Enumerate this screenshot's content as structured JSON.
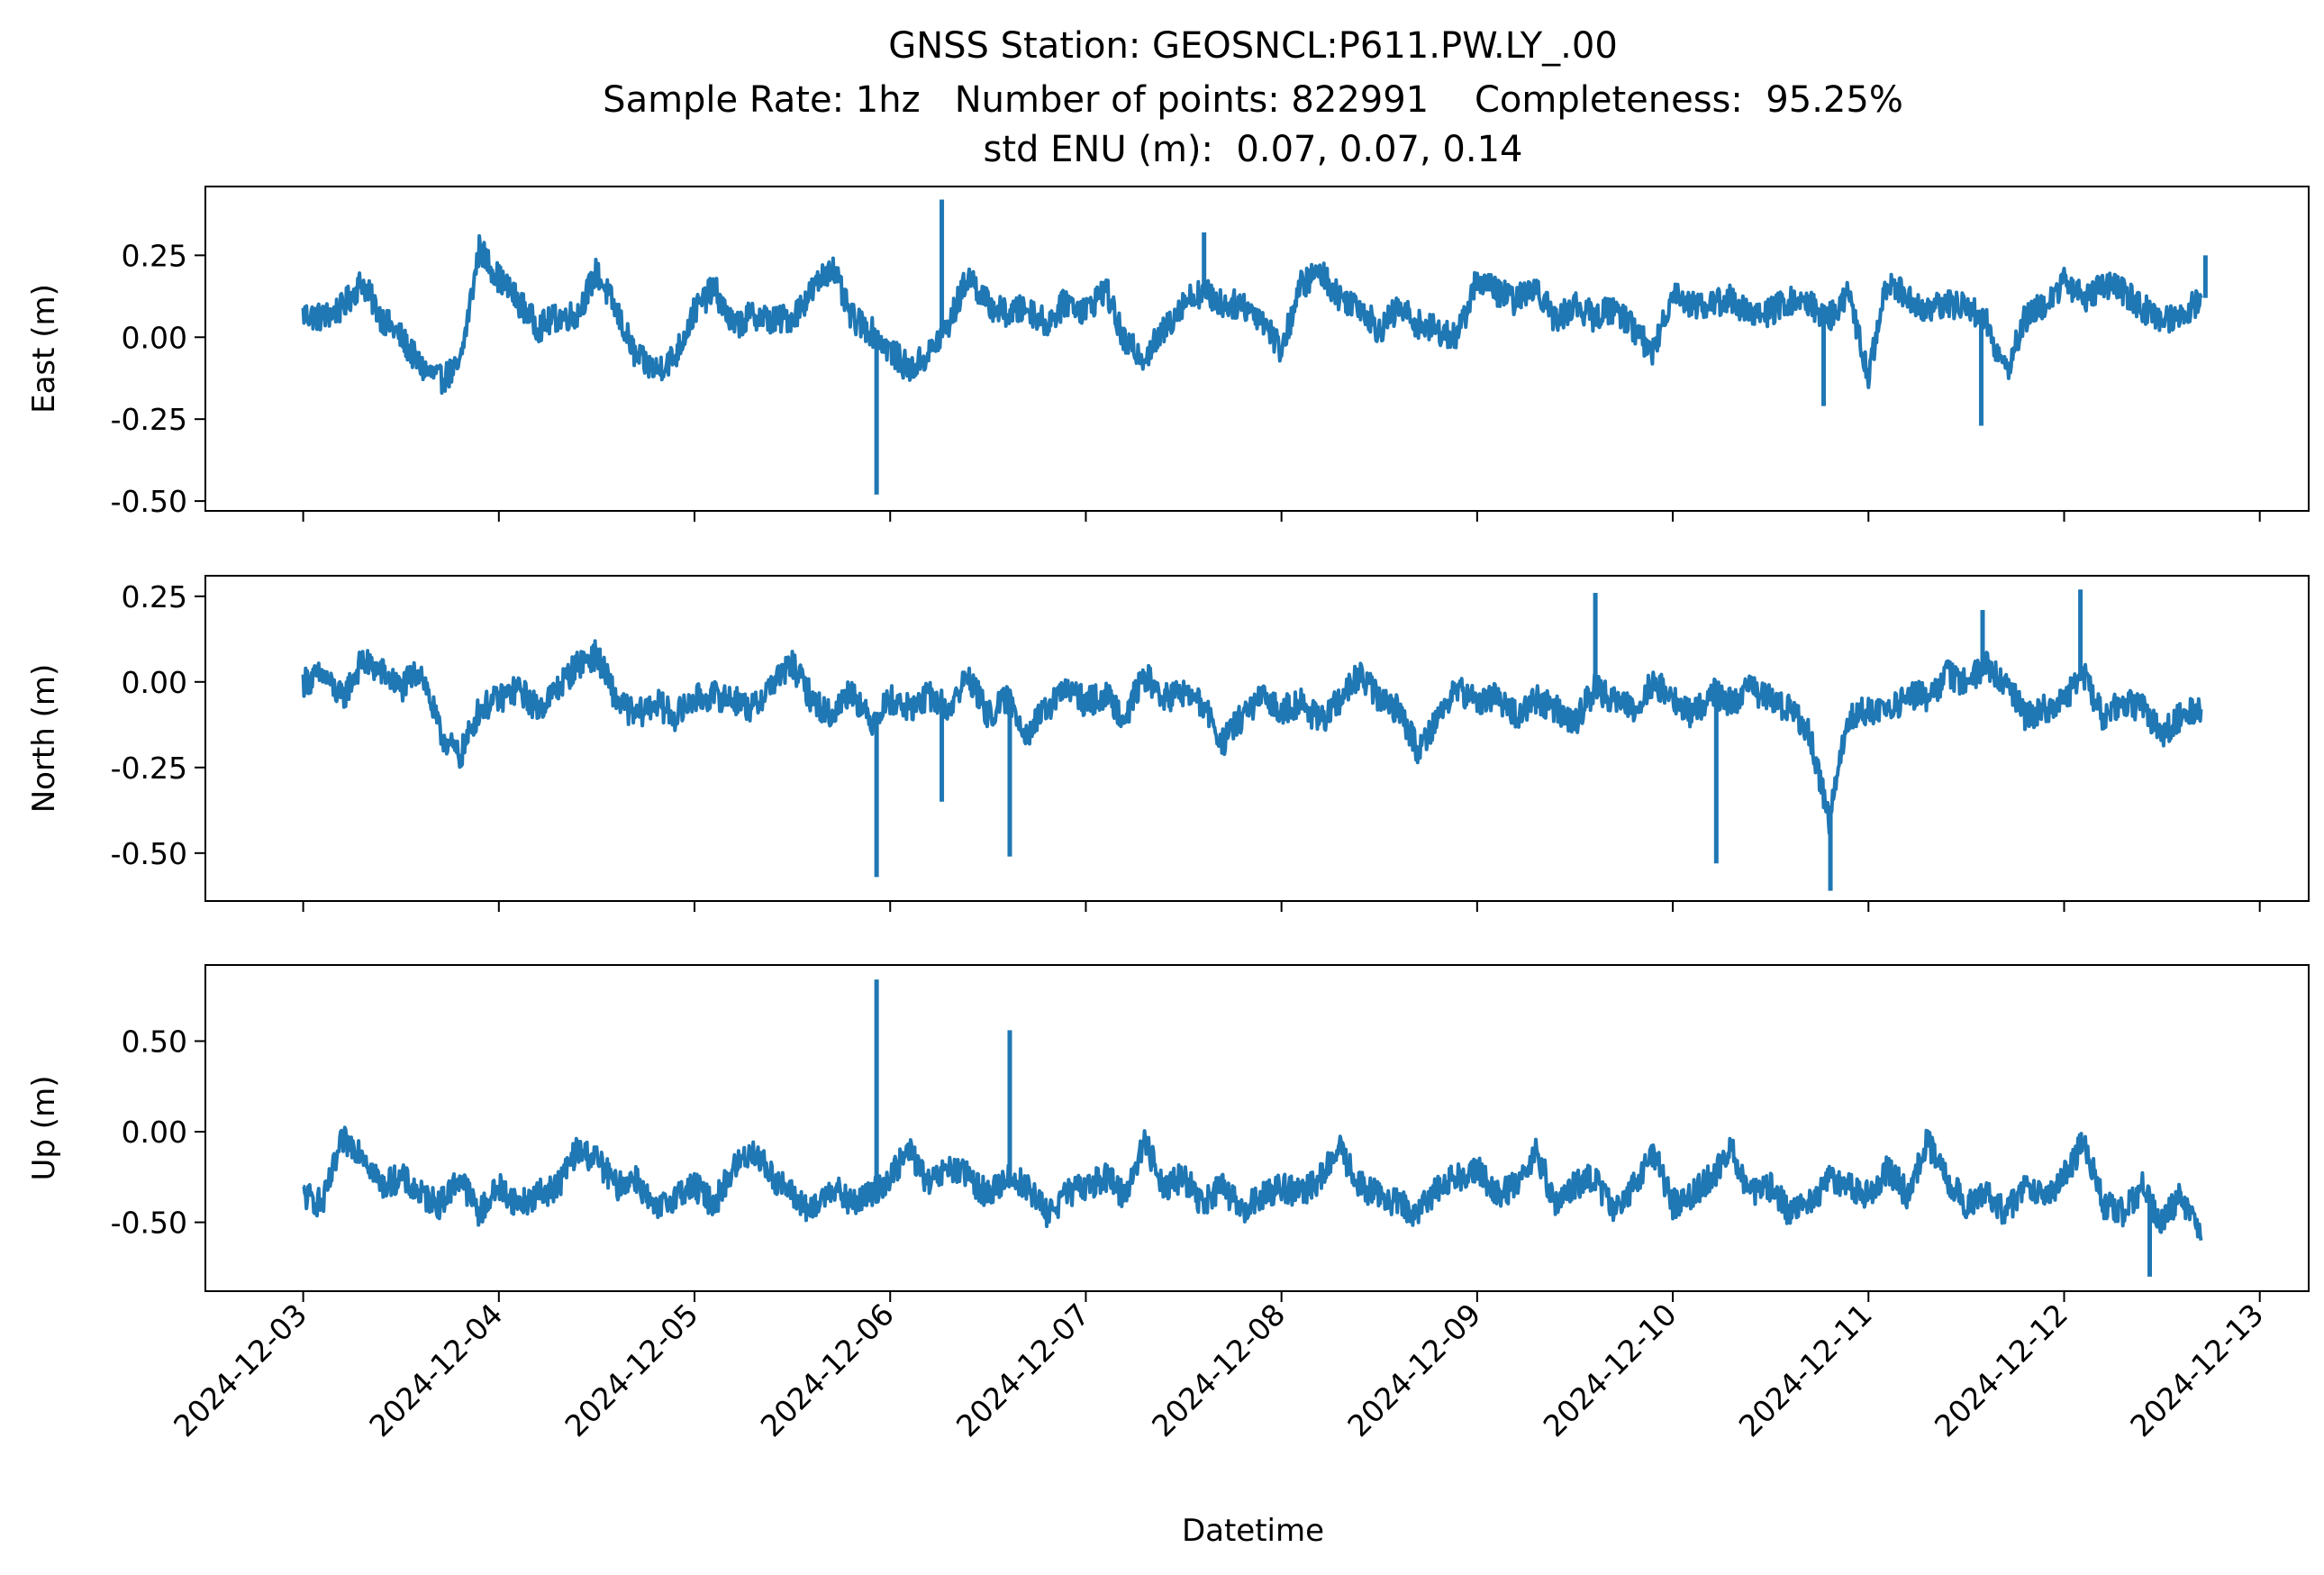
{
  "figure": {
    "title_lines": [
      "GNSS Station: GEOSNCL:P611.PW.LY_.00",
      "Sample Rate: 1hz   Number of points: 822991    Completeness:  95.25%",
      "std ENU (m):  0.07, 0.07, 0.14"
    ],
    "xlabel": "Datetime"
  },
  "chart_data": [
    {
      "type": "line",
      "ylabel": "East (m)",
      "x_range": [
        "2024-12-03",
        "2024-12-12T18:00"
      ],
      "xlim": [
        "2024-12-02T12:00",
        "2024-12-13T06:00"
      ],
      "ylim": [
        -0.53,
        0.46
      ],
      "yticks": [
        0.25,
        0.0,
        -0.25,
        -0.5
      ],
      "ytick_labels": [
        "0.25",
        "0.00",
        "-0.25",
        "-0.50"
      ],
      "xtick_labels": [],
      "color": "#1f77b4",
      "series": [
        {
          "x": [
            "2024-12-03T00:00",
            "2024-12-03T02:24",
            "2024-12-03T04:48",
            "2024-12-03T07:12",
            "2024-12-03T09:36",
            "2024-12-03T12:00",
            "2024-12-03T14:24",
            "2024-12-03T16:48",
            "2024-12-03T19:12",
            "2024-12-03T21:36",
            "2024-12-04T00:00",
            "2024-12-04T02:24",
            "2024-12-04T04:48",
            "2024-12-04T07:12",
            "2024-12-04T09:36",
            "2024-12-04T12:00",
            "2024-12-04T14:24",
            "2024-12-04T16:48",
            "2024-12-04T19:12",
            "2024-12-04T21:36",
            "2024-12-05T00:00",
            "2024-12-05T02:24",
            "2024-12-05T04:48",
            "2024-12-05T07:12",
            "2024-12-05T09:36",
            "2024-12-05T12:00",
            "2024-12-05T14:24",
            "2024-12-05T16:48",
            "2024-12-05T19:12",
            "2024-12-05T21:36",
            "2024-12-06T00:00",
            "2024-12-06T02:24",
            "2024-12-06T04:48",
            "2024-12-06T07:12",
            "2024-12-06T09:36",
            "2024-12-06T12:00",
            "2024-12-06T14:24",
            "2024-12-06T16:48",
            "2024-12-06T19:12",
            "2024-12-06T21:36",
            "2024-12-07T00:00",
            "2024-12-07T02:24",
            "2024-12-07T04:48",
            "2024-12-07T07:12",
            "2024-12-07T09:36",
            "2024-12-07T12:00",
            "2024-12-07T14:24",
            "2024-12-07T16:48",
            "2024-12-07T19:12",
            "2024-12-07T21:36",
            "2024-12-08T00:00",
            "2024-12-08T02:24",
            "2024-12-08T04:48",
            "2024-12-08T07:12",
            "2024-12-08T09:36",
            "2024-12-08T12:00",
            "2024-12-08T14:24",
            "2024-12-08T16:48",
            "2024-12-08T19:12",
            "2024-12-08T21:36",
            "2024-12-09T00:00",
            "2024-12-09T02:24",
            "2024-12-09T04:48",
            "2024-12-09T07:12",
            "2024-12-09T09:36",
            "2024-12-09T12:00",
            "2024-12-09T14:24",
            "2024-12-09T16:48",
            "2024-12-09T19:12",
            "2024-12-09T21:36",
            "2024-12-10T00:00",
            "2024-12-10T02:24",
            "2024-12-10T04:48",
            "2024-12-10T07:12",
            "2024-12-10T09:36",
            "2024-12-10T12:00",
            "2024-12-10T14:24",
            "2024-12-10T16:48",
            "2024-12-10T19:12",
            "2024-12-10T21:36",
            "2024-12-11T00:00",
            "2024-12-11T02:24",
            "2024-12-11T04:48",
            "2024-12-11T07:12",
            "2024-12-11T09:36",
            "2024-12-11T12:00",
            "2024-12-11T14:24",
            "2024-12-11T16:48",
            "2024-12-11T19:12",
            "2024-12-11T21:36",
            "2024-12-12T00:00",
            "2024-12-12T02:24",
            "2024-12-12T04:48",
            "2024-12-12T07:12",
            "2024-12-12T09:36",
            "2024-12-12T12:00",
            "2024-12-12T14:24",
            "2024-12-12T16:48"
          ],
          "y": [
            0.07,
            0.06,
            0.09,
            0.17,
            0.06,
            0.0,
            -0.09,
            -0.13,
            -0.09,
            0.27,
            0.18,
            0.11,
            0.03,
            0.06,
            0.07,
            0.2,
            0.08,
            -0.06,
            -0.1,
            -0.06,
            0.08,
            0.15,
            0.03,
            0.07,
            0.05,
            0.06,
            0.14,
            0.22,
            0.06,
            0.02,
            -0.04,
            -0.1,
            -0.05,
            0.04,
            0.19,
            0.1,
            0.07,
            0.09,
            0.04,
            0.11,
            0.08,
            0.15,
            -0.02,
            -0.06,
            0.02,
            0.11,
            0.14,
            0.1,
            0.1,
            0.06,
            -0.04,
            0.16,
            0.2,
            0.12,
            0.1,
            0.02,
            0.09,
            0.04,
            0.02,
            0.0,
            0.18,
            0.14,
            0.11,
            0.16,
            0.05,
            0.1,
            0.06,
            0.09,
            0.03,
            -0.05,
            0.14,
            0.1,
            0.1,
            0.12,
            0.06,
            0.08,
            0.11,
            0.1,
            0.06,
            0.13,
            -0.12,
            0.18,
            0.12,
            0.08,
            0.1,
            0.1,
            0.05,
            -0.11,
            0.06,
            0.1,
            0.17,
            0.12,
            0.16,
            0.14,
            0.09,
            0.05,
            0.07,
            0.12
          ]
        }
      ],
      "spikes": [
        {
          "x": "2024-12-05T22:20",
          "y": -0.48
        },
        {
          "x": "2024-12-06T06:20",
          "y": 0.42
        },
        {
          "x": "2024-12-07T14:30",
          "y": 0.32
        },
        {
          "x": "2024-12-10T18:30",
          "y": -0.21
        },
        {
          "x": "2024-12-11T13:50",
          "y": -0.27
        },
        {
          "x": "2024-12-12T17:20",
          "y": 0.25
        }
      ]
    },
    {
      "type": "line",
      "ylabel": "North (m)",
      "x_range": [
        "2024-12-03",
        "2024-12-12T18:00"
      ],
      "xlim": [
        "2024-12-02T12:00",
        "2024-12-13T06:00"
      ],
      "ylim": [
        -0.64,
        0.31
      ],
      "yticks": [
        0.25,
        0.0,
        -0.25,
        -0.5
      ],
      "ytick_labels": [
        "0.25",
        "0.00",
        "-0.25",
        "-0.50"
      ],
      "xtick_labels": [],
      "color": "#1f77b4",
      "series": [
        {
          "x": [
            "2024-12-03T00:00",
            "2024-12-03T02:24",
            "2024-12-03T04:48",
            "2024-12-03T07:12",
            "2024-12-03T09:36",
            "2024-12-03T12:00",
            "2024-12-03T14:24",
            "2024-12-03T16:48",
            "2024-12-03T19:12",
            "2024-12-03T21:36",
            "2024-12-04T00:00",
            "2024-12-04T02:24",
            "2024-12-04T04:48",
            "2024-12-04T07:12",
            "2024-12-04T09:36",
            "2024-12-04T12:00",
            "2024-12-04T14:24",
            "2024-12-04T16:48",
            "2024-12-04T19:12",
            "2024-12-04T21:36",
            "2024-12-05T00:00",
            "2024-12-05T02:24",
            "2024-12-05T04:48",
            "2024-12-05T07:12",
            "2024-12-05T09:36",
            "2024-12-05T12:00",
            "2024-12-05T14:24",
            "2024-12-05T16:48",
            "2024-12-05T19:12",
            "2024-12-05T21:36",
            "2024-12-06T00:00",
            "2024-12-06T02:24",
            "2024-12-06T04:48",
            "2024-12-06T07:12",
            "2024-12-06T09:36",
            "2024-12-06T12:00",
            "2024-12-06T14:24",
            "2024-12-06T16:48",
            "2024-12-06T19:12",
            "2024-12-06T21:36",
            "2024-12-07T00:00",
            "2024-12-07T02:24",
            "2024-12-07T04:48",
            "2024-12-07T07:12",
            "2024-12-07T09:36",
            "2024-12-07T12:00",
            "2024-12-07T14:24",
            "2024-12-07T16:48",
            "2024-12-07T19:12",
            "2024-12-07T21:36",
            "2024-12-08T00:00",
            "2024-12-08T02:24",
            "2024-12-08T04:48",
            "2024-12-08T07:12",
            "2024-12-08T09:36",
            "2024-12-08T12:00",
            "2024-12-08T14:24",
            "2024-12-08T16:48",
            "2024-12-08T19:12",
            "2024-12-08T21:36",
            "2024-12-09T00:00",
            "2024-12-09T02:24",
            "2024-12-09T04:48",
            "2024-12-09T07:12",
            "2024-12-09T09:36",
            "2024-12-09T12:00",
            "2024-12-09T14:24",
            "2024-12-09T16:48",
            "2024-12-09T19:12",
            "2024-12-09T21:36",
            "2024-12-10T00:00",
            "2024-12-10T02:24",
            "2024-12-10T04:48",
            "2024-12-10T07:12",
            "2024-12-10T09:36",
            "2024-12-10T12:00",
            "2024-12-10T14:24",
            "2024-12-10T16:48",
            "2024-12-10T19:12",
            "2024-12-10T21:36",
            "2024-12-11T00:00",
            "2024-12-11T02:24",
            "2024-12-11T04:48",
            "2024-12-11T07:12",
            "2024-12-11T09:36",
            "2024-12-11T12:00",
            "2024-12-11T14:24",
            "2024-12-11T16:48",
            "2024-12-11T19:12",
            "2024-12-11T21:36",
            "2024-12-12T00:00",
            "2024-12-12T02:24",
            "2024-12-12T04:48",
            "2024-12-12T07:12",
            "2024-12-12T09:36",
            "2024-12-12T12:00",
            "2024-12-12T14:24",
            "2024-12-12T16:48"
          ],
          "y": [
            0.0,
            0.02,
            -0.05,
            0.06,
            0.03,
            -0.02,
            0.04,
            -0.15,
            -0.22,
            -0.08,
            -0.05,
            -0.02,
            -0.08,
            -0.02,
            0.05,
            0.08,
            -0.05,
            -0.1,
            -0.06,
            -0.1,
            -0.05,
            -0.04,
            -0.05,
            -0.08,
            0.0,
            0.05,
            -0.05,
            -0.1,
            -0.02,
            -0.12,
            -0.05,
            -0.08,
            -0.04,
            -0.08,
            0.02,
            -0.1,
            -0.05,
            -0.15,
            -0.08,
            -0.02,
            -0.06,
            -0.04,
            -0.1,
            0.02,
            -0.05,
            -0.03,
            -0.07,
            -0.18,
            -0.1,
            -0.05,
            -0.08,
            -0.06,
            -0.12,
            -0.05,
            0.02,
            -0.05,
            -0.08,
            -0.2,
            -0.1,
            -0.02,
            -0.06,
            -0.04,
            -0.1,
            -0.05,
            -0.08,
            -0.12,
            -0.02,
            -0.05,
            -0.08,
            0.0,
            -0.05,
            -0.1,
            -0.03,
            -0.06,
            -0.02,
            -0.05,
            -0.08,
            -0.15,
            -0.4,
            -0.1,
            -0.08,
            -0.1,
            -0.03,
            -0.05,
            0.02,
            0.0,
            0.05,
            0.0,
            -0.1,
            -0.08,
            -0.05,
            0.02,
            -0.1,
            -0.05,
            -0.08,
            -0.15,
            -0.1,
            -0.08
          ]
        }
      ],
      "spikes": [
        {
          "x": "2024-12-05T22:20",
          "y": -0.57
        },
        {
          "x": "2024-12-06T06:20",
          "y": -0.35
        },
        {
          "x": "2024-12-06T14:40",
          "y": -0.51
        },
        {
          "x": "2024-12-09T14:30",
          "y": 0.26
        },
        {
          "x": "2024-12-10T05:20",
          "y": -0.53
        },
        {
          "x": "2024-12-10T19:20",
          "y": -0.61
        },
        {
          "x": "2024-12-11T14:00",
          "y": 0.21
        },
        {
          "x": "2024-12-12T02:00",
          "y": 0.27
        }
      ]
    },
    {
      "type": "line",
      "ylabel": "Up (m)",
      "x_range": [
        "2024-12-03",
        "2024-12-12T18:00"
      ],
      "xlim": [
        "2024-12-02T12:00",
        "2024-12-13T06:00"
      ],
      "ylim": [
        -0.88,
        0.92
      ],
      "yticks": [
        0.5,
        0.0,
        -0.5
      ],
      "ytick_labels": [
        "0.50",
        "0.00",
        "-0.50"
      ],
      "xtick_labels": [
        "2024-12-03",
        "2024-12-04",
        "2024-12-05",
        "2024-12-06",
        "2024-12-07",
        "2024-12-08",
        "2024-12-09",
        "2024-12-10",
        "2024-12-11",
        "2024-12-12",
        "2024-12-13"
      ],
      "color": "#1f77b4",
      "series": [
        {
          "x": [
            "2024-12-03T00:00",
            "2024-12-03T02:24",
            "2024-12-03T04:48",
            "2024-12-03T07:12",
            "2024-12-03T09:36",
            "2024-12-03T12:00",
            "2024-12-03T14:24",
            "2024-12-03T16:48",
            "2024-12-03T19:12",
            "2024-12-03T21:36",
            "2024-12-04T00:00",
            "2024-12-04T02:24",
            "2024-12-04T04:48",
            "2024-12-04T07:12",
            "2024-12-04T09:36",
            "2024-12-04T12:00",
            "2024-12-04T14:24",
            "2024-12-04T16:48",
            "2024-12-04T19:12",
            "2024-12-04T21:36",
            "2024-12-05T00:00",
            "2024-12-05T02:24",
            "2024-12-05T04:48",
            "2024-12-05T07:12",
            "2024-12-05T09:36",
            "2024-12-05T12:00",
            "2024-12-05T14:24",
            "2024-12-05T16:48",
            "2024-12-05T19:12",
            "2024-12-05T21:36",
            "2024-12-06T00:00",
            "2024-12-06T02:24",
            "2024-12-06T04:48",
            "2024-12-06T07:12",
            "2024-12-06T09:36",
            "2024-12-06T12:00",
            "2024-12-06T14:24",
            "2024-12-06T16:48",
            "2024-12-06T19:12",
            "2024-12-06T21:36",
            "2024-12-07T00:00",
            "2024-12-07T02:24",
            "2024-12-07T04:48",
            "2024-12-07T07:12",
            "2024-12-07T09:36",
            "2024-12-07T12:00",
            "2024-12-07T14:24",
            "2024-12-07T16:48",
            "2024-12-07T19:12",
            "2024-12-07T21:36",
            "2024-12-08T00:00",
            "2024-12-08T02:24",
            "2024-12-08T04:48",
            "2024-12-08T07:12",
            "2024-12-08T09:36",
            "2024-12-08T12:00",
            "2024-12-08T14:24",
            "2024-12-08T16:48",
            "2024-12-08T19:12",
            "2024-12-08T21:36",
            "2024-12-09T00:00",
            "2024-12-09T02:24",
            "2024-12-09T04:48",
            "2024-12-09T07:12",
            "2024-12-09T09:36",
            "2024-12-09T12:00",
            "2024-12-09T14:24",
            "2024-12-09T16:48",
            "2024-12-09T19:12",
            "2024-12-09T21:36",
            "2024-12-10T00:00",
            "2024-12-10T02:24",
            "2024-12-10T04:48",
            "2024-12-10T07:12",
            "2024-12-10T09:36",
            "2024-12-10T12:00",
            "2024-12-10T14:24",
            "2024-12-10T16:48",
            "2024-12-10T19:12",
            "2024-12-10T21:36",
            "2024-12-11T00:00",
            "2024-12-11T02:24",
            "2024-12-11T04:48",
            "2024-12-11T07:12",
            "2024-12-11T09:36",
            "2024-12-11T12:00",
            "2024-12-11T14:24",
            "2024-12-11T16:48",
            "2024-12-11T19:12",
            "2024-12-11T21:36",
            "2024-12-12T00:00",
            "2024-12-12T02:24",
            "2024-12-12T04:48",
            "2024-12-12T07:12",
            "2024-12-12T09:36",
            "2024-12-12T12:00",
            "2024-12-12T14:24",
            "2024-12-12T16:48"
          ],
          "y": [
            -0.35,
            -0.4,
            -0.05,
            -0.1,
            -0.3,
            -0.25,
            -0.35,
            -0.4,
            -0.25,
            -0.45,
            -0.3,
            -0.4,
            -0.35,
            -0.3,
            -0.1,
            -0.15,
            -0.3,
            -0.25,
            -0.45,
            -0.35,
            -0.3,
            -0.4,
            -0.2,
            -0.1,
            -0.25,
            -0.35,
            -0.45,
            -0.3,
            -0.4,
            -0.35,
            -0.25,
            -0.1,
            -0.3,
            -0.2,
            -0.25,
            -0.35,
            -0.25,
            -0.3,
            -0.45,
            -0.35,
            -0.3,
            -0.25,
            -0.35,
            -0.05,
            -0.3,
            -0.25,
            -0.4,
            -0.3,
            -0.45,
            -0.35,
            -0.3,
            -0.35,
            -0.25,
            -0.1,
            -0.3,
            -0.35,
            -0.4,
            -0.45,
            -0.3,
            -0.25,
            -0.2,
            -0.35,
            -0.3,
            -0.1,
            -0.4,
            -0.3,
            -0.25,
            -0.45,
            -0.3,
            -0.1,
            -0.4,
            -0.35,
            -0.25,
            -0.1,
            -0.35,
            -0.3,
            -0.45,
            -0.4,
            -0.25,
            -0.3,
            -0.35,
            -0.2,
            -0.35,
            -0.05,
            -0.25,
            -0.4,
            -0.35,
            -0.45,
            -0.3,
            -0.35,
            -0.25,
            -0.05,
            -0.4,
            -0.45,
            -0.3,
            -0.5,
            -0.35,
            -0.6
          ]
        }
      ],
      "spikes": [
        {
          "x": "2024-12-05T22:20",
          "y": 0.84
        },
        {
          "x": "2024-12-06T14:40",
          "y": 0.56
        },
        {
          "x": "2024-12-12T10:30",
          "y": -0.8
        }
      ]
    }
  ]
}
